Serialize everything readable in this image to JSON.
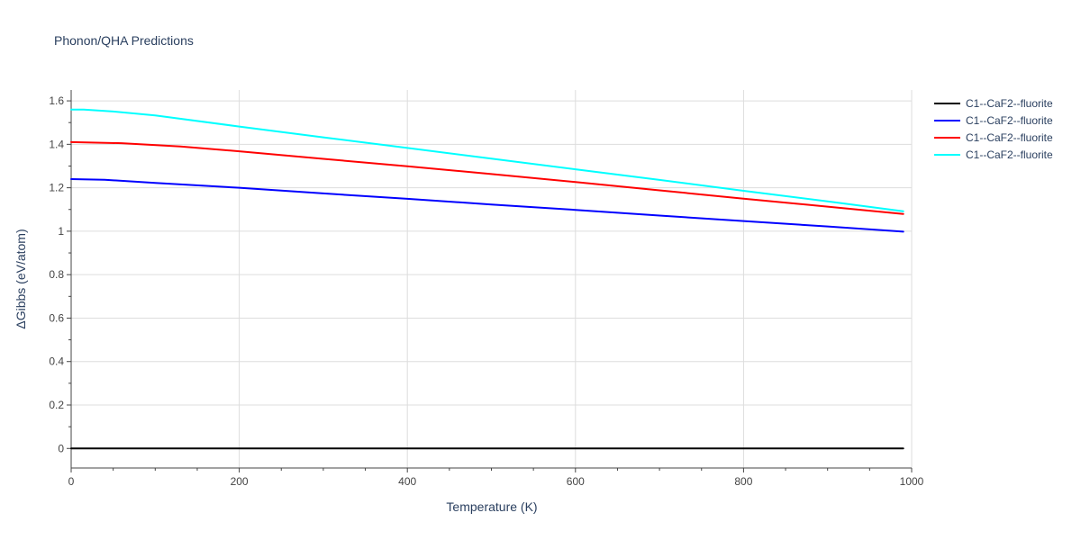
{
  "chart_data": {
    "type": "line",
    "title": "Phonon/QHA Predictions",
    "xlabel": "Temperature (K)",
    "ylabel": "ΔGibbs (eV/atom)",
    "xlim": [
      0,
      1000
    ],
    "ylim": [
      -0.09,
      1.65
    ],
    "x_ticks": [
      0,
      200,
      400,
      600,
      800,
      1000
    ],
    "x_tick_labels": [
      "0",
      "200",
      "400",
      "600",
      "800",
      "1000"
    ],
    "y_ticks": [
      0,
      0.2,
      0.4,
      0.6,
      0.8,
      1,
      1.2,
      1.4,
      1.6
    ],
    "y_tick_labels": [
      "0",
      "0.2",
      "0.4",
      "0.6",
      "0.8",
      "1",
      "1.2",
      "1.4",
      "1.6"
    ],
    "grid": true,
    "legend_position": "top-right",
    "series": [
      {
        "name": "C1--CaF2--fluorite",
        "color": "#000000",
        "x": [
          0,
          100,
          200,
          300,
          400,
          500,
          600,
          700,
          800,
          900,
          990
        ],
        "y": [
          0,
          0,
          0,
          0,
          0,
          0,
          0,
          0,
          0,
          0,
          0
        ]
      },
      {
        "name": "C1--CaF2--fluorite",
        "color": "#0000ff",
        "x": [
          0,
          40,
          100,
          200,
          300,
          400,
          500,
          600,
          700,
          800,
          900,
          990
        ],
        "y": [
          1.24,
          1.237,
          1.222,
          1.2,
          1.174,
          1.149,
          1.123,
          1.098,
          1.072,
          1.047,
          1.022,
          0.998
        ]
      },
      {
        "name": "C1--CaF2--fluorite",
        "color": "#ff0000",
        "x": [
          0,
          60,
          130,
          200,
          300,
          400,
          500,
          600,
          700,
          800,
          900,
          990
        ],
        "y": [
          1.41,
          1.405,
          1.39,
          1.368,
          1.333,
          1.299,
          1.263,
          1.226,
          1.188,
          1.15,
          1.113,
          1.079
        ]
      },
      {
        "name": "C1--CaF2--fluorite",
        "color": "#00ffff",
        "x": [
          0,
          15,
          50,
          100,
          200,
          300,
          400,
          500,
          600,
          700,
          800,
          900,
          990
        ],
        "y": [
          1.56,
          1.56,
          1.551,
          1.533,
          1.482,
          1.432,
          1.383,
          1.334,
          1.285,
          1.236,
          1.186,
          1.137,
          1.092
        ]
      }
    ]
  }
}
